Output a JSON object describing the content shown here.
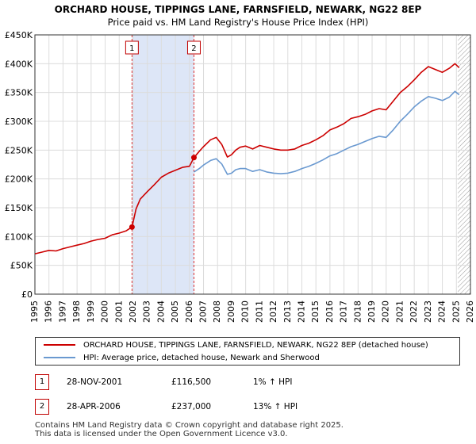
{
  "chart_data": {
    "type": "line",
    "title": "ORCHARD HOUSE, TIPPINGS LANE, FARNSFIELD, NEWARK, NG22 8EP",
    "subtitle": "Price paid vs. HM Land Registry's House Price Index (HPI)",
    "xlim": [
      1995,
      2026
    ],
    "ylim": [
      0,
      450000
    ],
    "y_ticks": [
      0,
      50000,
      100000,
      150000,
      200000,
      250000,
      300000,
      350000,
      400000,
      450000
    ],
    "y_tick_labels": [
      "£0",
      "£50K",
      "£100K",
      "£150K",
      "£200K",
      "£250K",
      "£300K",
      "£350K",
      "£400K",
      "£450K"
    ],
    "x_ticks": [
      1995,
      1996,
      1997,
      1998,
      1999,
      2000,
      2001,
      2002,
      2003,
      2004,
      2005,
      2006,
      2007,
      2008,
      2009,
      2010,
      2011,
      2012,
      2013,
      2014,
      2015,
      2016,
      2017,
      2018,
      2019,
      2020,
      2021,
      2022,
      2023,
      2024,
      2025,
      2026
    ],
    "x_tick_labels": [
      "1995",
      "1996",
      "1997",
      "1998",
      "1999",
      "2000",
      "2001",
      "2002",
      "2003",
      "2004",
      "2005",
      "2006",
      "2007",
      "2008",
      "2009",
      "2010",
      "2011",
      "2012",
      "2013",
      "2014",
      "2015",
      "2016",
      "2017",
      "2018",
      "2019",
      "2020",
      "2021",
      "2022",
      "2023",
      "2024",
      "2025",
      "2026"
    ],
    "grid": true,
    "shaded_period": [
      2001.91,
      2006.32
    ],
    "forecast_start": 2025.1,
    "series": [
      {
        "name": "ORCHARD HOUSE, TIPPINGS LANE, FARNSFIELD, NEWARK, NG22 8EP (detached house)",
        "color": "#cc0000",
        "x": [
          1995.0,
          1995.5,
          1996.0,
          1996.5,
          1997.0,
          1997.5,
          1998.0,
          1998.5,
          1999.0,
          1999.5,
          2000.0,
          2000.5,
          2001.0,
          2001.5,
          2001.91,
          2002.2,
          2002.5,
          2003.0,
          2003.5,
          2004.0,
          2004.5,
          2005.0,
          2005.5,
          2006.0,
          2006.32,
          2006.7,
          2007.0,
          2007.5,
          2007.9,
          2008.3,
          2008.7,
          2009.0,
          2009.3,
          2009.6,
          2010.0,
          2010.5,
          2011.0,
          2011.5,
          2012.0,
          2012.5,
          2013.0,
          2013.5,
          2014.0,
          2014.5,
          2015.0,
          2015.5,
          2016.0,
          2016.5,
          2017.0,
          2017.5,
          2018.0,
          2018.5,
          2019.0,
          2019.5,
          2020.0,
          2020.5,
          2021.0,
          2021.5,
          2022.0,
          2022.5,
          2023.0,
          2023.5,
          2024.0,
          2024.5,
          2024.9,
          2025.2
        ],
        "y": [
          70000,
          73000,
          76000,
          75000,
          79000,
          82000,
          85000,
          88000,
          92000,
          95000,
          97000,
          103000,
          106000,
          110000,
          116500,
          148000,
          165000,
          178000,
          190000,
          203000,
          210000,
          215000,
          220000,
          222000,
          237000,
          248000,
          256000,
          268000,
          272000,
          260000,
          238000,
          242000,
          250000,
          255000,
          257000,
          252000,
          258000,
          255000,
          252000,
          250000,
          250000,
          252000,
          258000,
          262000,
          268000,
          275000,
          285000,
          290000,
          296000,
          305000,
          308000,
          312000,
          318000,
          322000,
          320000,
          335000,
          350000,
          360000,
          372000,
          385000,
          395000,
          390000,
          385000,
          392000,
          400000,
          393000
        ]
      },
      {
        "name": "HPI: Average price, detached house, Newark and Sherwood",
        "color": "#6a99d0",
        "x": [
          2006.32,
          2006.7,
          2007.0,
          2007.5,
          2007.9,
          2008.3,
          2008.7,
          2009.0,
          2009.3,
          2009.6,
          2010.0,
          2010.5,
          2011.0,
          2011.5,
          2012.0,
          2012.5,
          2013.0,
          2013.5,
          2014.0,
          2014.5,
          2015.0,
          2015.5,
          2016.0,
          2016.5,
          2017.0,
          2017.5,
          2018.0,
          2018.5,
          2019.0,
          2019.5,
          2020.0,
          2020.5,
          2021.0,
          2021.5,
          2022.0,
          2022.5,
          2023.0,
          2023.5,
          2024.0,
          2024.5,
          2024.9,
          2025.2
        ],
        "y": [
          212000,
          218000,
          224000,
          232000,
          235000,
          226000,
          208000,
          210000,
          216000,
          218000,
          218000,
          213000,
          216000,
          212000,
          210000,
          209000,
          210000,
          213000,
          218000,
          222000,
          227000,
          233000,
          240000,
          244000,
          250000,
          256000,
          260000,
          265000,
          270000,
          274000,
          272000,
          285000,
          300000,
          312000,
          325000,
          335000,
          343000,
          340000,
          336000,
          342000,
          352000,
          346000
        ]
      }
    ],
    "sales": [
      {
        "label": "1",
        "x": 2001.91,
        "y": 116500
      },
      {
        "label": "2",
        "x": 2006.32,
        "y": 237000
      }
    ],
    "legend": [
      "ORCHARD HOUSE, TIPPINGS LANE, FARNSFIELD, NEWARK, NG22 8EP (detached house)",
      "HPI: Average price, detached house, Newark and Sherwood"
    ]
  },
  "transactions": [
    {
      "num": "1",
      "date": "28-NOV-2001",
      "price": "£116,500",
      "hpi": "1% ↑ HPI"
    },
    {
      "num": "2",
      "date": "28-APR-2006",
      "price": "£237,000",
      "hpi": "13% ↑ HPI"
    }
  ],
  "footer": {
    "line1": "Contains HM Land Registry data © Crown copyright and database right 2025.",
    "line2": "This data is licensed under the Open Government Licence v3.0."
  },
  "colors": {
    "property": "#cc0000",
    "hpi": "#6a99d0",
    "shade": "#dde6f7",
    "grid": "#dcdcdc"
  }
}
